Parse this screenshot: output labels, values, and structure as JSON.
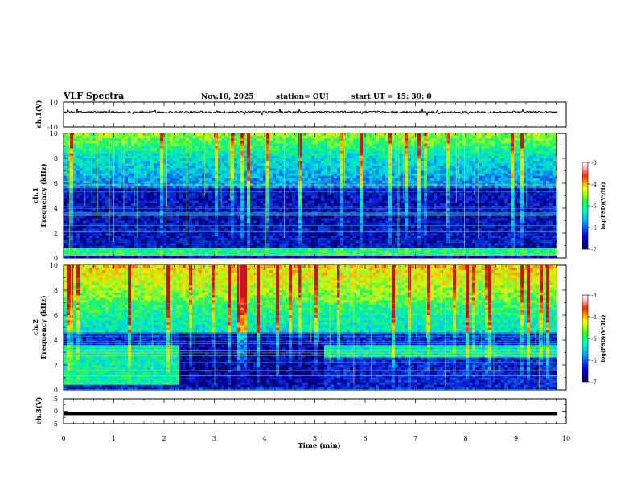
{
  "header": {
    "title": "VLF Spectra",
    "date": "Nov.10, 2025",
    "station": "station= OUJ",
    "start": "start  UT =   15: 30: 0"
  },
  "chart_data": {
    "type": "heatmap",
    "x_axis": {
      "label": "Time  (min)",
      "range": [
        0,
        10
      ],
      "ticks": [
        "0",
        "1",
        "2",
        "3",
        "4",
        "5",
        "6",
        "7",
        "8",
        "9",
        "10"
      ]
    },
    "panels": [
      {
        "id": "ch1-waveform",
        "type": "line",
        "ylabel": "ch.1(V)",
        "ylim": [
          -10,
          10
        ],
        "tick_labels": [
          "10",
          "-10"
        ],
        "baseline": 2
      },
      {
        "id": "ch1-spectrogram",
        "type": "heatmap",
        "ylabel": [
          "ch.1",
          "Frequency  (kHz)"
        ],
        "ylim": [
          0,
          10
        ],
        "tick_labels": [
          "0",
          "2",
          "4",
          "6",
          "8",
          "10"
        ],
        "colorbar": {
          "label": "log(PSD)(V²/Hz)",
          "range": [
            -7,
            -3
          ],
          "tick_labels": [
            "-3",
            "-4",
            "-5",
            "-6",
            "-7"
          ]
        }
      },
      {
        "id": "ch2-spectrogram",
        "type": "heatmap",
        "ylabel": [
          "ch.2",
          "Frequency  (kHz)"
        ],
        "ylim": [
          0,
          10
        ],
        "tick_labels": [
          "0",
          "2",
          "4",
          "6",
          "8",
          "10"
        ],
        "colorbar": {
          "label": "log(PSD)(V²/Hz)",
          "range": [
            -7,
            -3
          ],
          "tick_labels": [
            "-3",
            "-4",
            "-5",
            "-6",
            "-7"
          ]
        }
      },
      {
        "id": "ch3-waveform",
        "type": "line",
        "ylabel": "ch.3(V)",
        "ylim": [
          -5,
          5
        ],
        "tick_labels": [
          "5",
          "0",
          "-5"
        ],
        "baseline": -1
      }
    ]
  },
  "colors": {
    "deep_blue": "#00006e",
    "blue": "#1c3cdc",
    "cyan": "#00c8e8",
    "green": "#28f064",
    "yellow": "#f0f000",
    "red": "#e81c10"
  }
}
